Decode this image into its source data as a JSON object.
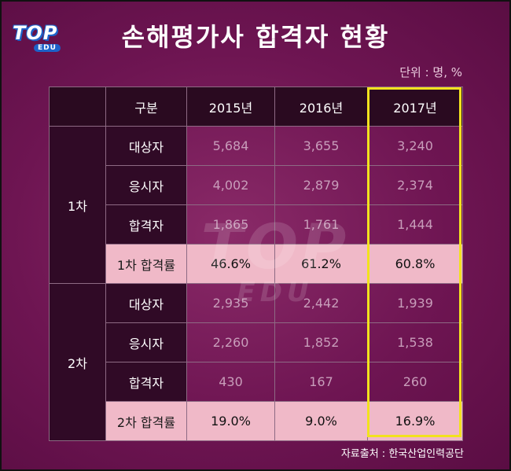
{
  "logo": {
    "top": "TOP",
    "edu": "EDU"
  },
  "title": "손해평가사 합격자 현황",
  "unit": "단위 : 명, %",
  "source": "자료출처 : 한국산업인력공단",
  "watermark": {
    "top": "TOP",
    "edu": "EDU"
  },
  "table": {
    "header": [
      "구분",
      "2015년",
      "2016년",
      "2017년"
    ],
    "groups": [
      {
        "label": "1차",
        "rows": [
          {
            "label": "대상자",
            "values": [
              "5,684",
              "3,655",
              "3,240"
            ]
          },
          {
            "label": "응시자",
            "values": [
              "4,002",
              "2,879",
              "2,374"
            ]
          },
          {
            "label": "합격자",
            "values": [
              "1,865",
              "1,761",
              "1,444"
            ]
          },
          {
            "label": "1차 합격률",
            "values": [
              "46.6%",
              "61.2%",
              "60.8%"
            ]
          }
        ]
      },
      {
        "label": "2차",
        "rows": [
          {
            "label": "대상자",
            "values": [
              "2,935",
              "2,442",
              "1,939"
            ]
          },
          {
            "label": "응시자",
            "values": [
              "2,260",
              "1,852",
              "1,538"
            ]
          },
          {
            "label": "합격자",
            "values": [
              "430",
              "167",
              "260"
            ]
          },
          {
            "label": "2차 합격률",
            "values": [
              "19.0%",
              "9.0%",
              "16.9%"
            ]
          }
        ]
      }
    ]
  },
  "colors": {
    "background": "#6e1552",
    "header_bg": "#2a0a20",
    "rate_row_bg": "#f0b9c8",
    "highlight_border": "#f2e21e"
  }
}
